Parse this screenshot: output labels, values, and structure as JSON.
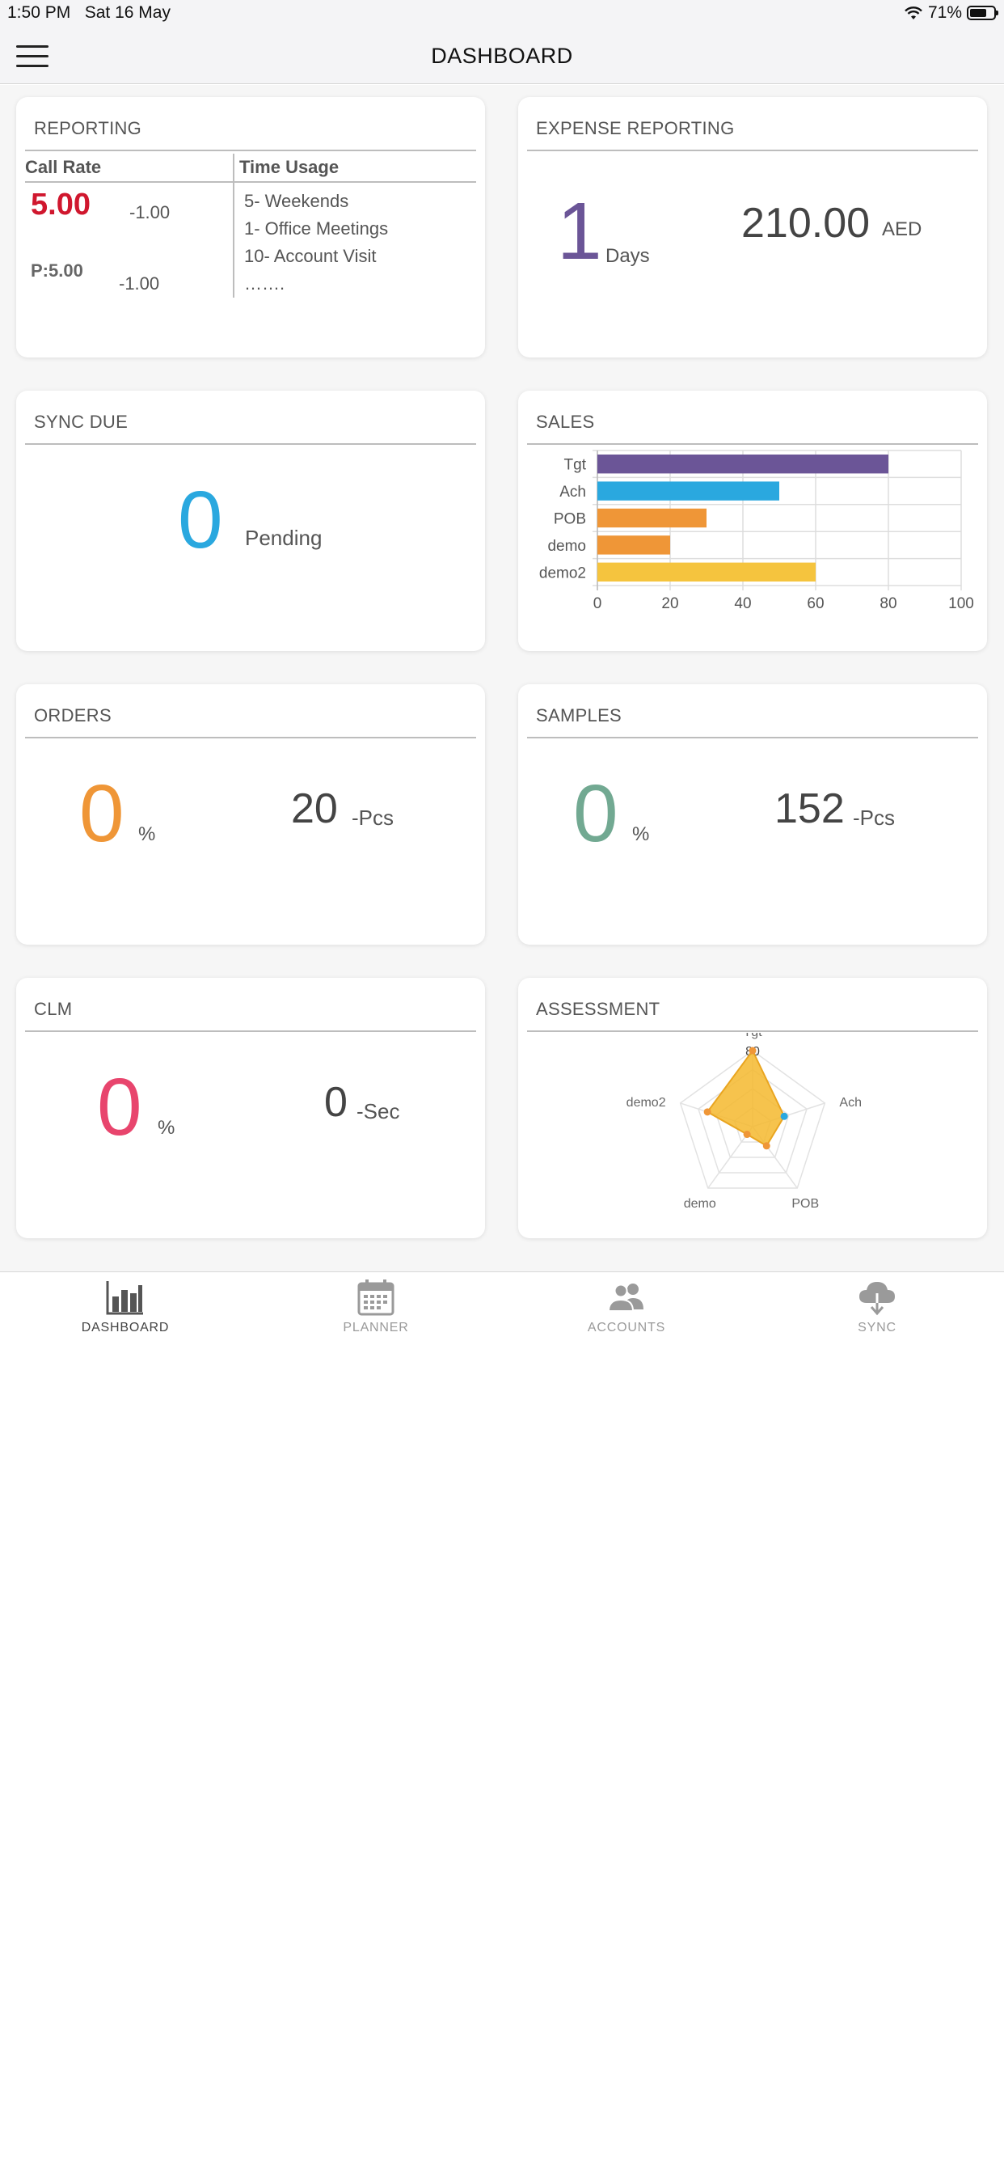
{
  "status_bar": {
    "time": "1:50 PM",
    "date": "Sat 16 May",
    "battery": "71%",
    "battery_level": 0.71
  },
  "nav": {
    "title": "DASHBOARD"
  },
  "reporting": {
    "title": "REPORTING",
    "col1_header": "Call Rate",
    "col2_header": "Time Usage",
    "call_rate": "5.00",
    "call_rate_delta": "-1.00",
    "planned": "P:5.00",
    "planned_delta": "-1.00",
    "time_usage": [
      "5- Weekends",
      "1- Office Meetings",
      "10- Account Visit",
      "……."
    ],
    "accent_color": "#d0172e"
  },
  "expense": {
    "title": "EXPENSE REPORTING",
    "days": "1",
    "days_unit": "Days",
    "amount": "210.00",
    "currency": "AED",
    "accent_color": "#6b5597"
  },
  "sync_due": {
    "title": "SYNC DUE",
    "count": "0",
    "unit": "Pending",
    "accent_color": "#2aa8df"
  },
  "sales": {
    "title": "SALES"
  },
  "orders": {
    "title": "ORDERS",
    "percent": "0",
    "percent_unit": "%",
    "qty": "20",
    "qty_unit": "-Pcs",
    "accent_color": "#ef9637"
  },
  "samples": {
    "title": "SAMPLES",
    "percent": "0",
    "percent_unit": "%",
    "qty": "152",
    "qty_unit": "-Pcs",
    "accent_color": "#72a992"
  },
  "clm": {
    "title": "CLM",
    "percent": "0",
    "percent_unit": "%",
    "time": "0",
    "time_unit": "-Sec",
    "accent_color": "#e8456d"
  },
  "assessment": {
    "title": "ASSESSMENT"
  },
  "tabs": [
    {
      "label": "DASHBOARD",
      "icon": "bar-chart-icon",
      "active": true
    },
    {
      "label": "PLANNER",
      "icon": "calendar-icon",
      "active": false
    },
    {
      "label": "ACCOUNTS",
      "icon": "users-icon",
      "active": false
    },
    {
      "label": "SYNC",
      "icon": "cloud-download-icon",
      "active": false
    }
  ],
  "chart_data": [
    {
      "type": "bar",
      "orientation": "horizontal",
      "categories": [
        "Tgt",
        "Ach",
        "POB",
        "demo",
        "demo2"
      ],
      "values": [
        80,
        50,
        30,
        20,
        60
      ],
      "colors": [
        "#6b5597",
        "#2aa8df",
        "#ef9637",
        "#ef9637",
        "#f5c43e"
      ],
      "xlim": [
        0,
        100
      ],
      "xticks": [
        "0",
        "20",
        "40",
        "60",
        "80",
        "100"
      ],
      "grid": true
    },
    {
      "type": "radar",
      "axes": [
        "Tgt",
        "Ach",
        "POB",
        "demo",
        "demo2"
      ],
      "max": 80,
      "max_label": "80",
      "series": [
        {
          "values": [
            80,
            35,
            25,
            10,
            50
          ],
          "color": "#f5b82e"
        }
      ],
      "highlight_point_color": "#2aa8df",
      "rings": 4
    }
  ]
}
